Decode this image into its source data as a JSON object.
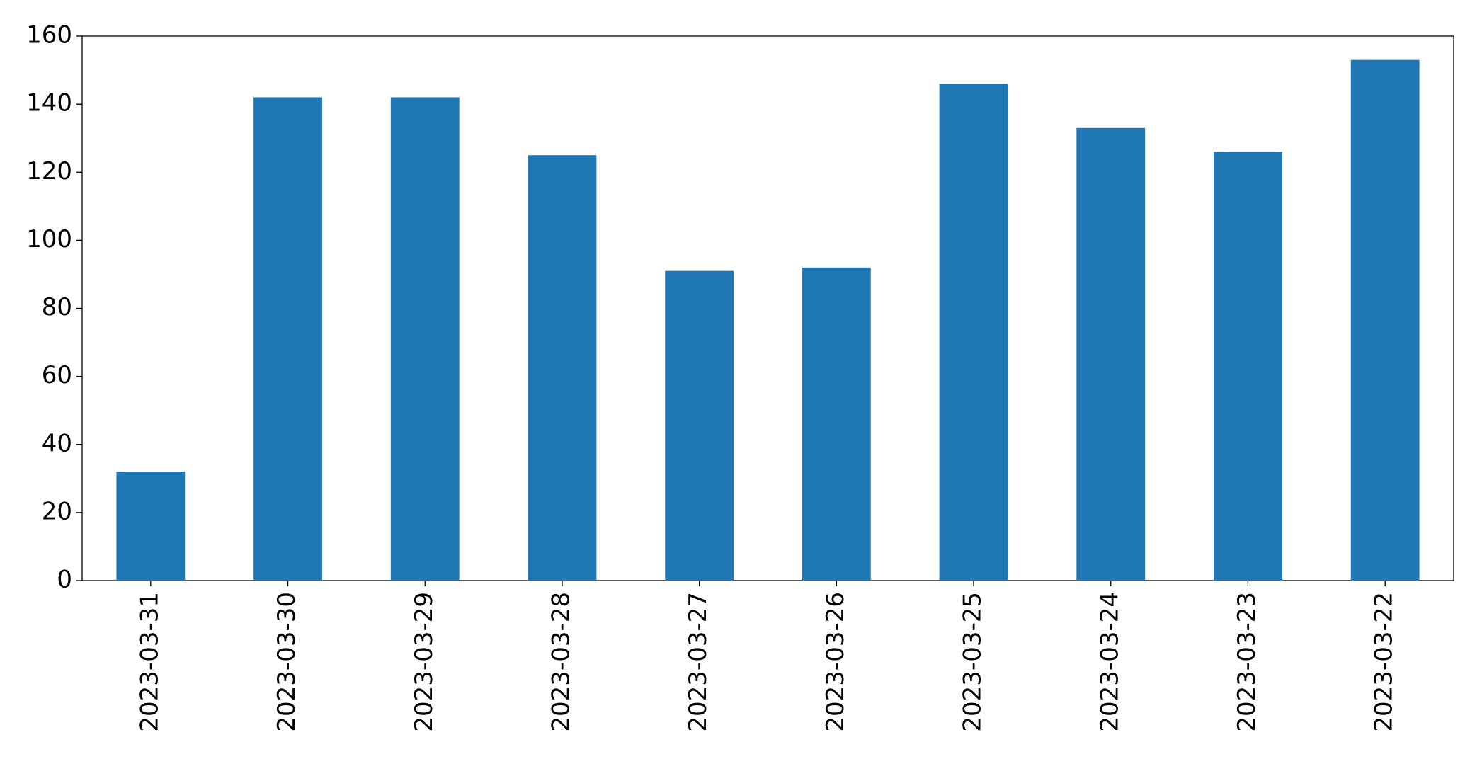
{
  "chart_data": {
    "type": "bar",
    "categories": [
      "2023-03-31",
      "2023-03-30",
      "2023-03-29",
      "2023-03-28",
      "2023-03-27",
      "2023-03-26",
      "2023-03-25",
      "2023-03-24",
      "2023-03-23",
      "2023-03-22"
    ],
    "values": [
      32,
      142,
      142,
      125,
      91,
      92,
      146,
      133,
      126,
      153
    ],
    "color": "#1f77b4",
    "ylim": [
      0,
      160
    ],
    "yticks": [
      0,
      20,
      40,
      60,
      80,
      100,
      120,
      140,
      160
    ],
    "grid": false
  }
}
